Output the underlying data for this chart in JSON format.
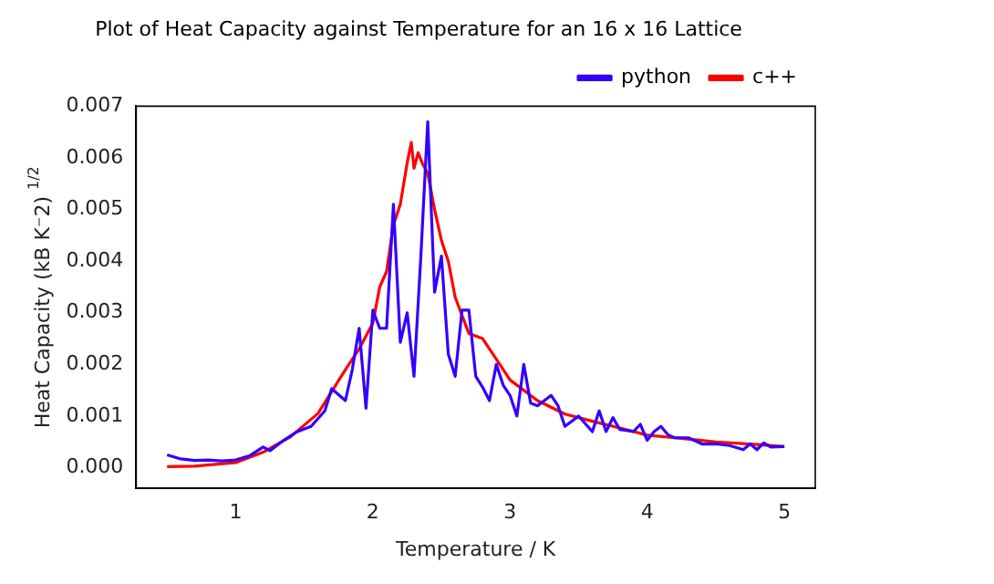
{
  "chart_data": {
    "type": "line",
    "title": "Plot of Heat Capacity against Temperature for an 16 x 16 Lattice",
    "xlabel": "Temperature / K",
    "ylabel": "Heat Capacity (kB K⁻2) $^{1/2}$",
    "xlim": [
      0.275,
      5.225
    ],
    "xticks": [
      1,
      2,
      3,
      4,
      5
    ],
    "ylim": [
      -0.0004,
      0.007
    ],
    "yticks": [
      {
        "value": 0,
        "label": "0.000"
      },
      {
        "value": 0.001,
        "label": "0.001"
      },
      {
        "value": 0.002,
        "label": "0.002"
      },
      {
        "value": 0.003,
        "label": "0.003"
      },
      {
        "value": 0.004,
        "label": "0.004"
      },
      {
        "value": 0.005,
        "label": "0.005"
      },
      {
        "value": 0.006,
        "label": "0.006"
      },
      {
        "value": 0.007,
        "label": "0.007"
      }
    ],
    "grid": false,
    "legend": "top right",
    "marker": "none",
    "line_style": "solid",
    "series": [
      {
        "name": "python",
        "color": "#3300ff",
        "x": [
          0.5,
          0.6,
          0.7,
          0.8,
          0.9,
          1.0,
          1.1,
          1.2,
          1.25,
          1.35,
          1.45,
          1.55,
          1.65,
          1.7,
          1.8,
          1.85,
          1.9,
          1.95,
          2.0,
          2.05,
          2.1,
          2.15,
          2.2,
          2.25,
          2.3,
          2.35,
          2.4,
          2.45,
          2.5,
          2.55,
          2.6,
          2.65,
          2.7,
          2.75,
          2.8,
          2.85,
          2.9,
          2.95,
          3.0,
          3.05,
          3.1,
          3.15,
          3.2,
          3.25,
          3.3,
          3.35,
          3.4,
          3.5,
          3.6,
          3.65,
          3.7,
          3.75,
          3.8,
          3.9,
          3.95,
          4.0,
          4.05,
          4.1,
          4.15,
          4.2,
          4.3,
          4.4,
          4.5,
          4.6,
          4.7,
          4.75,
          4.8,
          4.85,
          4.9,
          5.0
        ],
        "values": [
          0.00025,
          0.00017,
          0.00014,
          0.00015,
          0.00013,
          0.00015,
          0.00023,
          0.0004,
          0.00033,
          0.00053,
          0.0007,
          0.0008,
          0.0011,
          0.00153,
          0.0013,
          0.0019,
          0.0027,
          0.00115,
          0.00305,
          0.0027,
          0.0027,
          0.0051,
          0.00243,
          0.003,
          0.00177,
          0.0041,
          0.0067,
          0.0034,
          0.0041,
          0.0022,
          0.00177,
          0.00305,
          0.00305,
          0.00177,
          0.00156,
          0.0013,
          0.002,
          0.0016,
          0.0014,
          0.001,
          0.002,
          0.00125,
          0.0012,
          0.0013,
          0.0014,
          0.0012,
          0.0008,
          0.001,
          0.0007,
          0.0011,
          0.0007,
          0.00097,
          0.00074,
          0.0007,
          0.00084,
          0.00053,
          0.0007,
          0.0008,
          0.00064,
          0.00058,
          0.00058,
          0.00046,
          0.00046,
          0.00043,
          0.00035,
          0.00046,
          0.00035,
          0.00048,
          0.0004,
          0.00041
        ]
      },
      {
        "name": "c++",
        "color": "#ff0000",
        "x": [
          0.5,
          0.7,
          1.0,
          1.2,
          1.4,
          1.6,
          1.8,
          1.9,
          2.0,
          2.05,
          2.1,
          2.15,
          2.2,
          2.25,
          2.28,
          2.3,
          2.33,
          2.36,
          2.4,
          2.45,
          2.5,
          2.55,
          2.6,
          2.7,
          2.8,
          2.9,
          3.0,
          3.2,
          3.4,
          3.6,
          3.8,
          4.0,
          4.2,
          4.5,
          4.8,
          5.0
        ],
        "values": [
          2e-05,
          3e-05,
          0.0001,
          0.0003,
          0.0006,
          0.00105,
          0.0019,
          0.0023,
          0.0028,
          0.0035,
          0.0038,
          0.0047,
          0.0051,
          0.0059,
          0.0063,
          0.0058,
          0.0061,
          0.0059,
          0.0057,
          0.005,
          0.0044,
          0.004,
          0.0033,
          0.0026,
          0.0025,
          0.0021,
          0.0017,
          0.0013,
          0.00104,
          0.0009,
          0.00077,
          0.00063,
          0.00058,
          0.0005,
          0.00045,
          0.00041
        ]
      }
    ]
  }
}
